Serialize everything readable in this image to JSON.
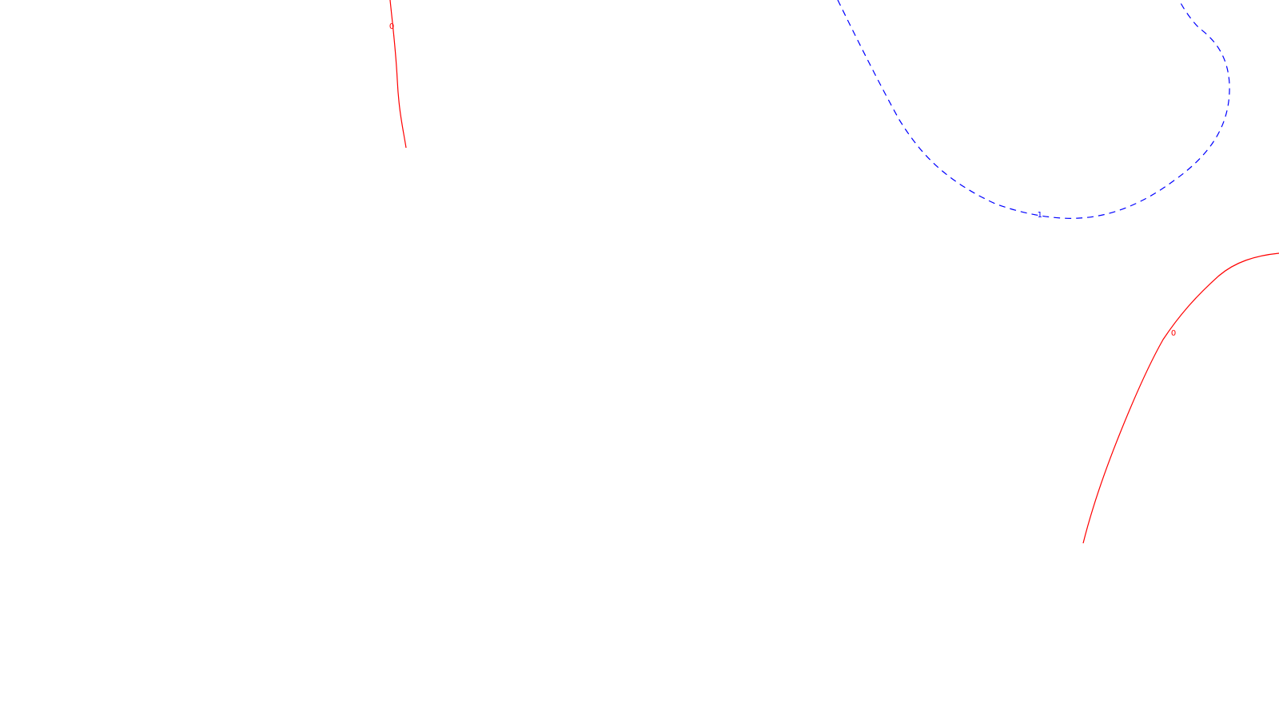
{
  "map": {
    "background": "#ffffff",
    "contours": [
      {
        "id": "zero-left",
        "level_label": "0",
        "color": "#ff0000",
        "style": "solid"
      },
      {
        "id": "minus-one-top-right",
        "level_label": "-1",
        "color": "#0000ff",
        "style": "dashed"
      },
      {
        "id": "zero-right",
        "level_label": "0",
        "color": "#ff0000",
        "style": "solid"
      }
    ]
  }
}
